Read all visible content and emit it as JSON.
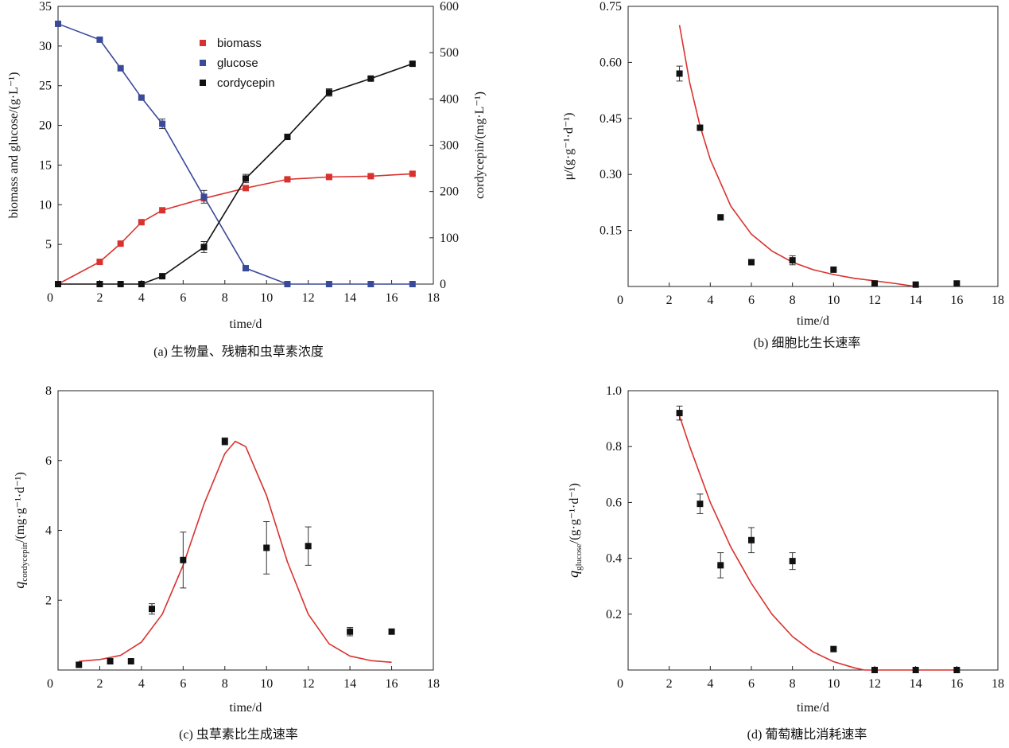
{
  "colors": {
    "red": "#d9322e",
    "blue": "#3a4a9a",
    "black": "#111111"
  },
  "chart_data": [
    {
      "id": "a",
      "type": "line",
      "caption": "(a) 生物量、残糖和虫草素浓度",
      "xlabel": "time/d",
      "ylabel": "biomass and glucose/(g·L⁻¹)",
      "y2label": "cordycepin/(mg·L⁻¹)",
      "xlim": [
        0,
        18
      ],
      "ylim": [
        0,
        35
      ],
      "y2lim": [
        0,
        600
      ],
      "xticks": [
        0,
        2,
        4,
        6,
        8,
        10,
        12,
        14,
        16,
        18
      ],
      "yticks": [
        5,
        10,
        15,
        20,
        25,
        30,
        35
      ],
      "y2ticks": [
        0,
        100,
        200,
        300,
        400,
        500,
        600
      ],
      "legend": [
        "biomass",
        "glucose",
        "cordycepin"
      ],
      "series": [
        {
          "name": "biomass",
          "axis": "left",
          "color": "red",
          "x": [
            0,
            2,
            3,
            4,
            5,
            7,
            9,
            11,
            13,
            15,
            17
          ],
          "y": [
            0,
            2.8,
            5.1,
            7.8,
            9.3,
            10.8,
            12.1,
            13.2,
            13.5,
            13.6,
            13.9
          ],
          "err": [
            0,
            0,
            0,
            0,
            0,
            0.2,
            0.2,
            0.2,
            0.2,
            0.2,
            0.2
          ]
        },
        {
          "name": "glucose",
          "axis": "left",
          "color": "blue",
          "x": [
            0,
            2,
            3,
            4,
            5,
            7,
            9,
            11,
            13,
            15,
            17
          ],
          "y": [
            32.8,
            30.8,
            27.2,
            23.5,
            20.2,
            11,
            2,
            0,
            0,
            0,
            0
          ],
          "err": [
            0,
            0,
            0,
            0,
            0.6,
            0.8,
            0,
            0,
            0,
            0,
            0
          ]
        },
        {
          "name": "cordycepin",
          "axis": "right",
          "color": "black",
          "x": [
            0,
            2,
            3,
            4,
            5,
            7,
            9,
            11,
            13,
            15,
            17
          ],
          "y": [
            0,
            0,
            0,
            0,
            17,
            80,
            228,
            318,
            414,
            444,
            476
          ],
          "err": [
            0,
            0,
            0,
            0,
            0,
            12,
            9,
            4,
            8,
            3,
            3
          ]
        }
      ]
    },
    {
      "id": "b",
      "type": "scatter",
      "caption": "(b) 细胞比生长速率",
      "xlabel": "time/d",
      "ylabel": "μ/(g·g⁻¹·d⁻¹)",
      "xlim": [
        0,
        18
      ],
      "ylim": [
        0,
        0.75
      ],
      "xticks": [
        0,
        2,
        4,
        6,
        8,
        10,
        12,
        14,
        16,
        18
      ],
      "yticks": [
        0.15,
        0.3,
        0.45,
        0.6,
        0.75
      ],
      "ytick_labels": [
        "0.15",
        "0.30",
        "0.45",
        "0.60",
        "0.75"
      ],
      "points": {
        "x": [
          2.5,
          3.5,
          4.5,
          6,
          8,
          10,
          12,
          14,
          16
        ],
        "y": [
          0.57,
          0.425,
          0.185,
          0.065,
          0.07,
          0.045,
          0.008,
          0.005,
          0.008
        ],
        "err": [
          0.02,
          0,
          0,
          0,
          0.012,
          0,
          0,
          0,
          0
        ]
      },
      "fit": {
        "x": [
          2.5,
          3,
          3.5,
          4,
          5,
          6,
          7,
          8,
          9,
          10,
          11,
          12,
          13,
          14
        ],
        "y": [
          0.7,
          0.545,
          0.43,
          0.34,
          0.215,
          0.14,
          0.095,
          0.065,
          0.045,
          0.032,
          0.022,
          0.015,
          0.008,
          0.0
        ]
      }
    },
    {
      "id": "c",
      "type": "scatter",
      "caption": "(c) 虫草素比生成速率",
      "xlabel": "time/d",
      "ylabel": "q",
      "ylabel_sub": "cordycepin",
      "ylabel_rest": "/(mg·g⁻¹·d⁻¹)",
      "xlim": [
        0,
        18
      ],
      "ylim": [
        0,
        8
      ],
      "xticks": [
        0,
        2,
        4,
        6,
        8,
        10,
        12,
        14,
        16,
        18
      ],
      "yticks": [
        2,
        4,
        6,
        8
      ],
      "ytick_labels": [
        "2",
        "4",
        "6",
        "8"
      ],
      "points": {
        "x": [
          1,
          2.5,
          3.5,
          4.5,
          6,
          8,
          10,
          12,
          14,
          16
        ],
        "y": [
          0.15,
          0.25,
          0.25,
          1.75,
          3.15,
          6.55,
          3.5,
          3.55,
          1.1,
          1.1
        ],
        "err": [
          0,
          0,
          0,
          0.15,
          0.8,
          0.1,
          0.75,
          0.55,
          0.12,
          0
        ]
      },
      "fit": {
        "x": [
          1,
          2,
          3,
          4,
          5,
          6,
          7,
          8,
          8.5,
          9,
          10,
          11,
          12,
          13,
          14,
          15,
          16
        ],
        "y": [
          0.25,
          0.3,
          0.42,
          0.8,
          1.6,
          3.0,
          4.75,
          6.2,
          6.55,
          6.4,
          5.0,
          3.1,
          1.6,
          0.75,
          0.4,
          0.27,
          0.22
        ]
      }
    },
    {
      "id": "d",
      "type": "scatter",
      "caption": "(d) 葡萄糖比消耗速率",
      "xlabel": "time/d",
      "ylabel": "q",
      "ylabel_sub": "glucose",
      "ylabel_rest": "/(g·g⁻¹·d⁻¹)",
      "xlim": [
        0,
        18
      ],
      "ylim": [
        0,
        1.0
      ],
      "xticks": [
        0,
        2,
        4,
        6,
        8,
        10,
        12,
        14,
        16,
        18
      ],
      "yticks": [
        0.2,
        0.4,
        0.6,
        0.8,
        1.0
      ],
      "ytick_labels": [
        "0.2",
        "0.4",
        "0.6",
        "0.8",
        "1.0"
      ],
      "points": {
        "x": [
          2.5,
          3.5,
          4.5,
          6,
          8,
          10,
          12,
          14,
          16
        ],
        "y": [
          0.92,
          0.595,
          0.375,
          0.465,
          0.39,
          0.075,
          0.0,
          0.0,
          0.0
        ],
        "err": [
          0.025,
          0.035,
          0.045,
          0.045,
          0.03,
          0,
          0,
          0,
          0
        ]
      },
      "fit": {
        "x": [
          2.5,
          3,
          4,
          5,
          6,
          7,
          8,
          9,
          10,
          11,
          11.5,
          12,
          14,
          16
        ],
        "y": [
          0.91,
          0.8,
          0.6,
          0.44,
          0.31,
          0.2,
          0.12,
          0.065,
          0.03,
          0.008,
          0.0,
          0.0,
          0.0,
          0.0
        ]
      }
    }
  ]
}
